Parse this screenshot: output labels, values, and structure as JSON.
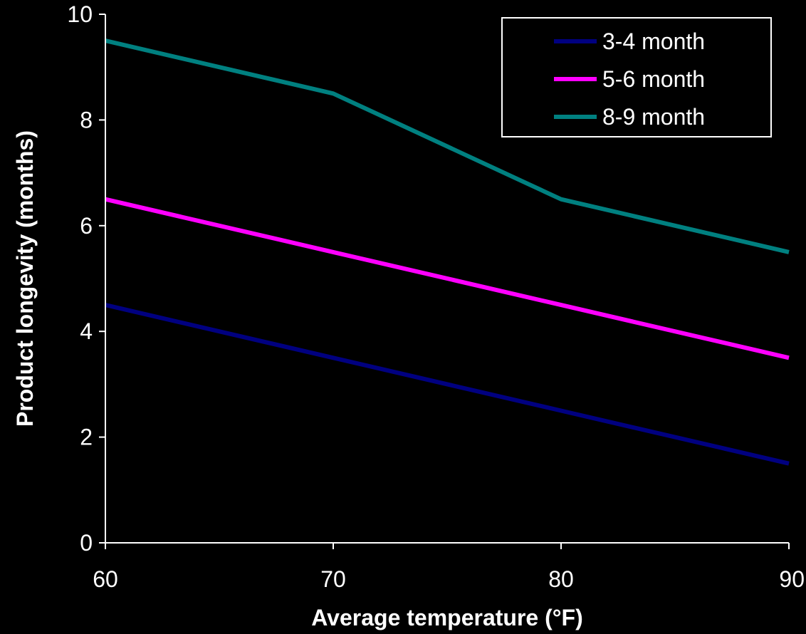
{
  "chart_data": {
    "type": "line",
    "title": "",
    "xlabel": "Average temperature (°F)",
    "ylabel": "Product longevity (months)",
    "x": [
      60,
      70,
      80,
      90
    ],
    "xlim": [
      60,
      90
    ],
    "ylim": [
      0,
      10
    ],
    "xticks": [
      "60",
      "70",
      "80",
      "90"
    ],
    "yticks": [
      "0",
      "2",
      "4",
      "6",
      "8",
      "10"
    ],
    "grid": false,
    "legend_position": "top-right",
    "background": "#000000",
    "series": [
      {
        "name": "3-4 month",
        "color": "#000080",
        "values": [
          4.5,
          3.5,
          2.5,
          1.5
        ]
      },
      {
        "name": "5-6 month",
        "color": "#ff00ff",
        "values": [
          6.5,
          5.5,
          4.5,
          3.5
        ]
      },
      {
        "name": "8-9 month",
        "color": "#008080",
        "values": [
          9.5,
          8.5,
          6.5,
          5.5
        ]
      }
    ]
  }
}
